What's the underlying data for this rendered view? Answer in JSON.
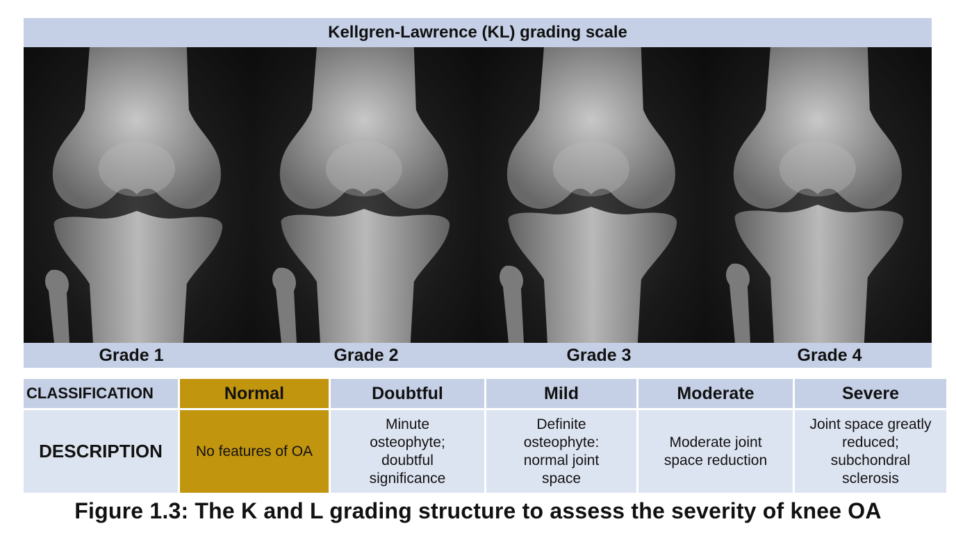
{
  "panel": {
    "title": "Kellgren-Lawrence (KL) grading scale",
    "grades": [
      "Grade 1",
      "Grade 2",
      "Grade 3",
      "Grade 4"
    ]
  },
  "table": {
    "header_label": "CLASSIFICATION",
    "desc_label": "DESCRIPTION",
    "columns": [
      {
        "classification": "Normal",
        "description": "No features of OA"
      },
      {
        "classification": "Doubtful",
        "description": "Minute osteophyte; doubtful significance"
      },
      {
        "classification": "Mild",
        "description": "Definite osteophyte: normal joint space"
      },
      {
        "classification": "Moderate",
        "description": "Moderate joint space reduction"
      },
      {
        "classification": "Severe",
        "description": "Joint space greatly reduced; subchondral sclerosis"
      }
    ],
    "highlight_color": "#c2950f"
  },
  "caption": "Figure 1.3: The K and L grading structure to assess the severity of knee OA"
}
